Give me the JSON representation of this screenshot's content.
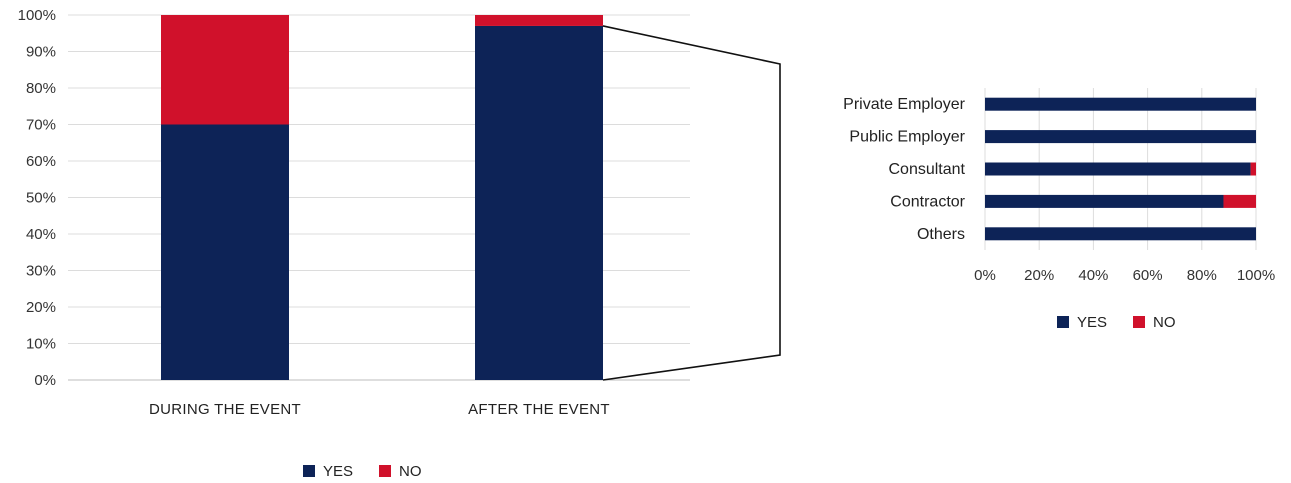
{
  "chart_data": [
    {
      "type": "bar",
      "stacked": true,
      "orientation": "vertical",
      "categories": [
        "DURING THE EVENT",
        "AFTER THE EVENT"
      ],
      "series": [
        {
          "name": "YES",
          "values": [
            70,
            97
          ],
          "color": "#0d2357"
        },
        {
          "name": "NO",
          "values": [
            30,
            3
          ],
          "color": "#d0112b"
        }
      ],
      "ylim": [
        0,
        100
      ],
      "yticks": [
        "0%",
        "10%",
        "20%",
        "30%",
        "40%",
        "50%",
        "60%",
        "70%",
        "80%",
        "90%",
        "100%"
      ],
      "grid": true,
      "legend": "bottom",
      "title": "",
      "xlabel": "",
      "ylabel": ""
    },
    {
      "type": "bar",
      "stacked": true,
      "orientation": "horizontal",
      "categories": [
        "Private Employer",
        "Public Employer",
        "Consultant",
        "Contractor",
        "Others"
      ],
      "series": [
        {
          "name": "YES",
          "values": [
            100,
            100,
            98,
            88,
            100
          ],
          "color": "#0d2357"
        },
        {
          "name": "NO",
          "values": [
            0,
            0,
            2,
            12,
            0
          ],
          "color": "#d0112b"
        }
      ],
      "xlim": [
        0,
        100
      ],
      "xticks": [
        "0%",
        "20%",
        "40%",
        "60%",
        "80%",
        "100%"
      ],
      "grid": true,
      "legend": "bottom",
      "title": "",
      "xlabel": "",
      "ylabel": ""
    }
  ]
}
